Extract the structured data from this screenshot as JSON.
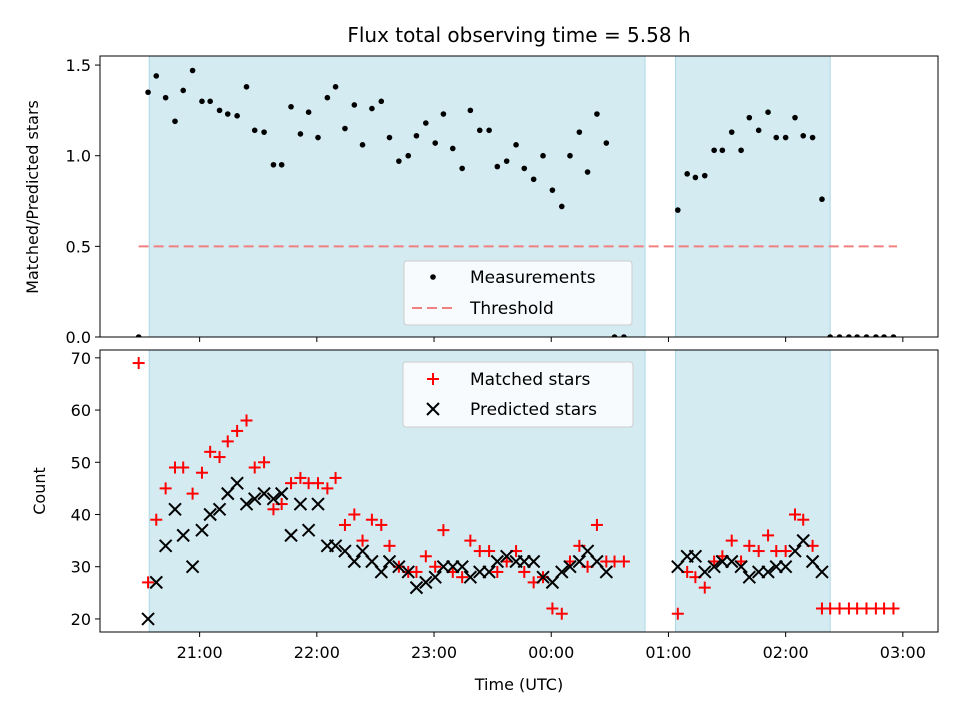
{
  "chart_data": {
    "title": "Flux total observing time = 5.58 h",
    "xlabel": "Time (UTC)",
    "x_unit": "hours after 00:00 UTC",
    "x_range": [
      -3.85,
      3.3
    ],
    "x_ticks": [
      {
        "value": -3,
        "label": "21:00"
      },
      {
        "value": -2,
        "label": "22:00"
      },
      {
        "value": -1,
        "label": "23:00"
      },
      {
        "value": 0,
        "label": "00:00"
      },
      {
        "value": 1,
        "label": "01:00"
      },
      {
        "value": 2,
        "label": "02:00"
      },
      {
        "value": 3,
        "label": "03:00"
      }
    ],
    "shaded_intervals": [
      [
        -3.43,
        0.8
      ],
      [
        1.06,
        2.38
      ]
    ],
    "shade_color": "#add8e6",
    "panels": [
      {
        "type": "scatter",
        "ylabel": "Matched/Predicted stars",
        "ylim": [
          0,
          1.55
        ],
        "y_ticks": [
          0.0,
          0.5,
          1.0,
          1.5
        ],
        "y_tick_labels": [
          "0.0",
          "0.5",
          "1.0",
          "1.5"
        ],
        "threshold": {
          "value": 0.5,
          "x_from": -3.52,
          "x_to": 2.95,
          "color": "#f08080"
        },
        "legend": {
          "position": "lower-center",
          "entries": [
            "Measurements",
            "Threshold"
          ]
        },
        "series": [
          {
            "name": "Measurements",
            "marker": "dot",
            "color": "#000000",
            "points": [
              [
                -3.52,
                0.0
              ],
              [
                -3.44,
                1.35
              ],
              [
                -3.37,
                1.44
              ],
              [
                -3.29,
                1.32
              ],
              [
                -3.21,
                1.19
              ],
              [
                -3.14,
                1.36
              ],
              [
                -3.06,
                1.47
              ],
              [
                -2.98,
                1.3
              ],
              [
                -2.91,
                1.3
              ],
              [
                -2.83,
                1.25
              ],
              [
                -2.76,
                1.23
              ],
              [
                -2.68,
                1.22
              ],
              [
                -2.6,
                1.38
              ],
              [
                -2.53,
                1.14
              ],
              [
                -2.45,
                1.13
              ],
              [
                -2.37,
                0.95
              ],
              [
                -2.3,
                0.95
              ],
              [
                -2.22,
                1.27
              ],
              [
                -2.14,
                1.12
              ],
              [
                -2.07,
                1.24
              ],
              [
                -1.99,
                1.1
              ],
              [
                -1.91,
                1.32
              ],
              [
                -1.84,
                1.38
              ],
              [
                -1.76,
                1.15
              ],
              [
                -1.68,
                1.28
              ],
              [
                -1.61,
                1.06
              ],
              [
                -1.53,
                1.26
              ],
              [
                -1.45,
                1.3
              ],
              [
                -1.38,
                1.1
              ],
              [
                -1.3,
                0.97
              ],
              [
                -1.22,
                1.0
              ],
              [
                -1.15,
                1.11
              ],
              [
                -1.07,
                1.18
              ],
              [
                -0.99,
                1.07
              ],
              [
                -0.92,
                1.23
              ],
              [
                -0.84,
                1.04
              ],
              [
                -0.76,
                0.93
              ],
              [
                -0.69,
                1.25
              ],
              [
                -0.61,
                1.14
              ],
              [
                -0.53,
                1.14
              ],
              [
                -0.46,
                0.94
              ],
              [
                -0.38,
                0.97
              ],
              [
                -0.3,
                1.06
              ],
              [
                -0.23,
                0.93
              ],
              [
                -0.15,
                0.87
              ],
              [
                -0.07,
                1.0
              ],
              [
                0.01,
                0.81
              ],
              [
                0.09,
                0.72
              ],
              [
                0.16,
                1.0
              ],
              [
                0.24,
                1.13
              ],
              [
                0.31,
                0.91
              ],
              [
                0.39,
                1.23
              ],
              [
                0.47,
                1.07
              ],
              [
                0.54,
                0.0
              ],
              [
                0.62,
                0.0
              ],
              [
                1.08,
                0.7
              ],
              [
                1.16,
                0.9
              ],
              [
                1.23,
                0.88
              ],
              [
                1.31,
                0.89
              ],
              [
                1.39,
                1.03
              ],
              [
                1.46,
                1.03
              ],
              [
                1.54,
                1.13
              ],
              [
                1.62,
                1.03
              ],
              [
                1.69,
                1.21
              ],
              [
                1.77,
                1.14
              ],
              [
                1.85,
                1.24
              ],
              [
                1.92,
                1.1
              ],
              [
                2.0,
                1.1
              ],
              [
                2.08,
                1.21
              ],
              [
                2.15,
                1.11
              ],
              [
                2.23,
                1.1
              ],
              [
                2.31,
                0.76
              ],
              [
                2.38,
                0.0
              ],
              [
                2.46,
                0.0
              ],
              [
                2.54,
                0.0
              ],
              [
                2.61,
                0.0
              ],
              [
                2.69,
                0.0
              ],
              [
                2.77,
                0.0
              ],
              [
                2.84,
                0.0
              ],
              [
                2.92,
                0.0
              ]
            ]
          }
        ]
      },
      {
        "type": "scatter",
        "ylabel": "Count",
        "ylim": [
          17.5,
          71.5
        ],
        "y_ticks": [
          20,
          30,
          40,
          50,
          60,
          70
        ],
        "y_tick_labels": [
          "20",
          "30",
          "40",
          "50",
          "60",
          "70"
        ],
        "legend": {
          "position": "upper-center",
          "entries": [
            "Matched stars",
            "Predicted stars"
          ]
        },
        "series": [
          {
            "name": "Matched stars",
            "marker": "plus",
            "color": "#ff0000",
            "points": [
              [
                -3.52,
                69
              ],
              [
                -3.44,
                27
              ],
              [
                -3.37,
                39
              ],
              [
                -3.29,
                45
              ],
              [
                -3.21,
                49
              ],
              [
                -3.14,
                49
              ],
              [
                -3.06,
                44
              ],
              [
                -2.98,
                48
              ],
              [
                -2.91,
                52
              ],
              [
                -2.83,
                51
              ],
              [
                -2.76,
                54
              ],
              [
                -2.68,
                56
              ],
              [
                -2.6,
                58
              ],
              [
                -2.53,
                49
              ],
              [
                -2.45,
                50
              ],
              [
                -2.37,
                41
              ],
              [
                -2.3,
                42
              ],
              [
                -2.22,
                46
              ],
              [
                -2.14,
                47
              ],
              [
                -2.07,
                46
              ],
              [
                -1.99,
                46
              ],
              [
                -1.91,
                45
              ],
              [
                -1.84,
                47
              ],
              [
                -1.76,
                38
              ],
              [
                -1.68,
                40
              ],
              [
                -1.61,
                35
              ],
              [
                -1.53,
                39
              ],
              [
                -1.45,
                38
              ],
              [
                -1.38,
                34
              ],
              [
                -1.3,
                30
              ],
              [
                -1.22,
                29
              ],
              [
                -1.15,
                29
              ],
              [
                -1.07,
                32
              ],
              [
                -0.99,
                30
              ],
              [
                -0.92,
                37
              ],
              [
                -0.84,
                29
              ],
              [
                -0.76,
                28
              ],
              [
                -0.69,
                35
              ],
              [
                -0.61,
                33
              ],
              [
                -0.53,
                33
              ],
              [
                -0.46,
                29
              ],
              [
                -0.38,
                31
              ],
              [
                -0.3,
                33
              ],
              [
                -0.23,
                29
              ],
              [
                -0.15,
                27
              ],
              [
                -0.07,
                28
              ],
              [
                0.01,
                22
              ],
              [
                0.09,
                21
              ],
              [
                0.16,
                31
              ],
              [
                0.24,
                34
              ],
              [
                0.31,
                30
              ],
              [
                0.39,
                38
              ],
              [
                0.47,
                31
              ],
              [
                0.54,
                31
              ],
              [
                0.62,
                31
              ],
              [
                1.08,
                21
              ],
              [
                1.16,
                29
              ],
              [
                1.23,
                28
              ],
              [
                1.31,
                26
              ],
              [
                1.39,
                31
              ],
              [
                1.46,
                32
              ],
              [
                1.54,
                35
              ],
              [
                1.62,
                31
              ],
              [
                1.69,
                34
              ],
              [
                1.77,
                33
              ],
              [
                1.85,
                36
              ],
              [
                1.92,
                33
              ],
              [
                2.0,
                33
              ],
              [
                2.08,
                40
              ],
              [
                2.15,
                39
              ],
              [
                2.23,
                34
              ],
              [
                2.31,
                22
              ],
              [
                2.38,
                22
              ],
              [
                2.46,
                22
              ],
              [
                2.54,
                22
              ],
              [
                2.61,
                22
              ],
              [
                2.69,
                22
              ],
              [
                2.77,
                22
              ],
              [
                2.84,
                22
              ],
              [
                2.92,
                22
              ]
            ]
          },
          {
            "name": "Predicted stars",
            "marker": "x",
            "color": "#000000",
            "points": [
              [
                -3.44,
                20
              ],
              [
                -3.37,
                27
              ],
              [
                -3.29,
                34
              ],
              [
                -3.21,
                41
              ],
              [
                -3.14,
                36
              ],
              [
                -3.06,
                30
              ],
              [
                -2.98,
                37
              ],
              [
                -2.91,
                40
              ],
              [
                -2.83,
                41
              ],
              [
                -2.76,
                44
              ],
              [
                -2.68,
                46
              ],
              [
                -2.6,
                42
              ],
              [
                -2.53,
                43
              ],
              [
                -2.45,
                44
              ],
              [
                -2.37,
                43
              ],
              [
                -2.3,
                44
              ],
              [
                -2.22,
                36
              ],
              [
                -2.14,
                42
              ],
              [
                -2.07,
                37
              ],
              [
                -1.99,
                42
              ],
              [
                -1.91,
                34
              ],
              [
                -1.84,
                34
              ],
              [
                -1.76,
                33
              ],
              [
                -1.68,
                31
              ],
              [
                -1.61,
                33
              ],
              [
                -1.53,
                31
              ],
              [
                -1.45,
                29
              ],
              [
                -1.38,
                31
              ],
              [
                -1.3,
                30
              ],
              [
                -1.22,
                29
              ],
              [
                -1.15,
                26
              ],
              [
                -1.07,
                27
              ],
              [
                -0.99,
                28
              ],
              [
                -0.92,
                30
              ],
              [
                -0.84,
                30
              ],
              [
                -0.76,
                30
              ],
              [
                -0.69,
                28
              ],
              [
                -0.61,
                29
              ],
              [
                -0.53,
                29
              ],
              [
                -0.46,
                31
              ],
              [
                -0.38,
                32
              ],
              [
                -0.3,
                31
              ],
              [
                -0.23,
                31
              ],
              [
                -0.15,
                31
              ],
              [
                -0.07,
                28
              ],
              [
                0.01,
                27
              ],
              [
                0.09,
                29
              ],
              [
                0.16,
                30
              ],
              [
                0.24,
                31
              ],
              [
                0.31,
                33
              ],
              [
                0.39,
                31
              ],
              [
                0.47,
                29
              ],
              [
                1.08,
                30
              ],
              [
                1.16,
                32
              ],
              [
                1.23,
                32
              ],
              [
                1.31,
                29
              ],
              [
                1.39,
                30
              ],
              [
                1.46,
                31
              ],
              [
                1.54,
                31
              ],
              [
                1.62,
                30
              ],
              [
                1.69,
                28
              ],
              [
                1.77,
                29
              ],
              [
                1.85,
                29
              ],
              [
                1.92,
                30
              ],
              [
                2.0,
                30
              ],
              [
                2.08,
                33
              ],
              [
                2.15,
                35
              ],
              [
                2.23,
                31
              ],
              [
                2.31,
                29
              ]
            ]
          }
        ]
      }
    ]
  }
}
